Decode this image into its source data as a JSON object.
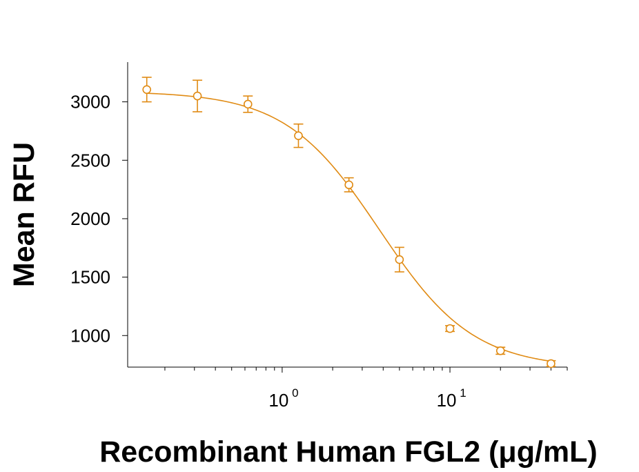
{
  "chart_data": {
    "type": "scatter",
    "title": "",
    "xlabel": "Recombinant Human FGL2 (μg/mL)",
    "ylabel": "Mean RFU",
    "xscale": "log10",
    "xlim": [
      0.12,
      50
    ],
    "ylim": [
      730,
      3340
    ],
    "x_ticks": [
      {
        "value": 1,
        "base": "10",
        "exp": "0"
      },
      {
        "value": 10,
        "base": "10",
        "exp": "1"
      }
    ],
    "y_ticks": [
      1000,
      1500,
      2000,
      2500,
      3000
    ],
    "y_tick_labels": [
      "1000",
      "1500",
      "2000",
      "2500",
      "3000"
    ],
    "color": "#e08a12",
    "series": [
      {
        "name": "FGL2",
        "marker": "circle",
        "x": [
          0.156,
          0.3125,
          0.625,
          1.25,
          2.5,
          5,
          10,
          20,
          40
        ],
        "y": [
          3105,
          3050,
          2980,
          2710,
          2290,
          1650,
          1060,
          870,
          760
        ],
        "err": [
          105,
          135,
          70,
          100,
          60,
          105,
          25,
          30,
          25
        ]
      }
    ],
    "fit": {
      "model": "4PL",
      "top": 3090,
      "bottom": 720,
      "ec50": 3.8,
      "hill": 1.55
    }
  }
}
